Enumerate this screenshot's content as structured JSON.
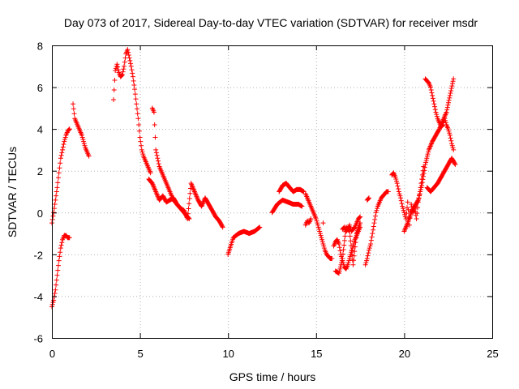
{
  "chart_data": {
    "type": "scatter",
    "title": "Day 073 of 2017, Sidereal Day-to-day VTEC variation (SDTVAR) for receiver msdr",
    "xlabel": "GPS time / hours",
    "ylabel": "SDTVAR / TECUs",
    "xlim": [
      0,
      25
    ],
    "ylim": [
      -6,
      8
    ],
    "xticks": [
      "0",
      "5",
      "10",
      "15",
      "20",
      "25"
    ],
    "yticks": [
      "-6",
      "-4",
      "-2",
      "0",
      "2",
      "4",
      "6",
      "8"
    ],
    "grid": true,
    "marker": "+",
    "marker_color": "#ff0000",
    "series": [
      {
        "name": "rise-0",
        "x": [
          0.0,
          0.1,
          0.2,
          0.3,
          0.4,
          0.5,
          0.6,
          0.7,
          0.8,
          0.9,
          1.0
        ],
        "y": [
          -0.5,
          0.0,
          0.6,
          1.2,
          1.9,
          2.6,
          3.0,
          3.4,
          3.7,
          3.9,
          4.0
        ]
      },
      {
        "name": "low-0",
        "x": [
          0.0,
          0.1,
          0.2,
          0.3,
          0.4,
          0.5,
          0.6,
          0.7,
          0.8,
          0.9,
          1.0
        ],
        "y": [
          -4.5,
          -4.2,
          -3.7,
          -3.0,
          -2.3,
          -1.7,
          -1.3,
          -1.1,
          -1.1,
          -1.2,
          -1.2
        ]
      },
      {
        "name": "seg-1",
        "x": [
          1.2,
          1.3,
          1.4,
          1.5,
          1.6,
          1.7,
          1.8,
          1.9,
          2.0,
          2.1
        ],
        "y": [
          5.2,
          4.5,
          4.3,
          4.1,
          3.9,
          3.7,
          3.4,
          3.1,
          2.9,
          2.7
        ]
      },
      {
        "name": "seg-2",
        "x": [
          3.5,
          3.6,
          3.7,
          3.8,
          3.9,
          4.0,
          4.1,
          4.2,
          4.3,
          4.4,
          4.5,
          4.6,
          4.7,
          4.8,
          4.9,
          5.0,
          5.1,
          5.2,
          5.3,
          5.4,
          5.5,
          5.6
        ],
        "y": [
          5.4,
          6.8,
          7.1,
          6.7,
          6.5,
          6.6,
          7.0,
          7.6,
          7.8,
          7.4,
          7.0,
          6.5,
          5.9,
          5.2,
          4.5,
          3.6,
          3.0,
          2.7,
          2.5,
          2.3,
          2.1,
          1.9
        ]
      },
      {
        "name": "seg-3",
        "x": [
          5.7,
          5.8,
          5.9,
          6.0,
          6.1,
          6.2,
          6.3,
          6.4,
          6.5,
          6.6,
          6.7,
          6.8,
          6.9,
          7.0,
          7.1,
          7.2,
          7.3,
          7.4,
          7.5,
          7.6,
          7.7,
          7.8
        ],
        "y": [
          5.0,
          4.8,
          3.0,
          2.6,
          2.2,
          2.0,
          1.8,
          1.6,
          1.4,
          1.2,
          1.0,
          0.8,
          0.6,
          0.5,
          0.4,
          0.3,
          0.2,
          0.1,
          0.0,
          -0.1,
          -0.2,
          -0.3
        ]
      },
      {
        "name": "seg-4",
        "x": [
          5.5,
          5.7,
          5.9,
          6.1,
          6.3,
          6.5,
          6.7,
          6.9,
          7.1,
          7.3,
          7.5,
          7.7,
          7.9,
          8.1,
          8.3,
          8.5,
          8.7,
          8.9,
          9.1,
          9.3,
          9.5,
          9.7
        ],
        "y": [
          1.6,
          1.4,
          1.0,
          0.6,
          0.8,
          0.5,
          0.6,
          0.7,
          0.4,
          0.2,
          0.1,
          -0.3,
          1.4,
          1.0,
          0.6,
          0.3,
          0.7,
          0.4,
          0.1,
          -0.2,
          -0.4,
          -0.7
        ]
      },
      {
        "name": "seg-5",
        "x": [
          10.0,
          10.3,
          10.6,
          10.9,
          11.2,
          11.5,
          11.8
        ],
        "y": [
          -2.0,
          -1.2,
          -1.0,
          -0.9,
          -1.0,
          -0.9,
          -0.7
        ]
      },
      {
        "name": "seg-6",
        "x": [
          12.5,
          12.8,
          13.1,
          13.4,
          13.7,
          14.0,
          14.2
        ],
        "y": [
          0.0,
          0.4,
          0.6,
          0.5,
          0.4,
          0.4,
          0.3
        ]
      },
      {
        "name": "seg-7",
        "x": [
          12.9,
          13.1,
          13.3,
          13.5,
          13.7,
          13.9,
          14.1,
          14.3
        ],
        "y": [
          1.0,
          1.3,
          1.4,
          1.2,
          1.0,
          1.1,
          1.1,
          1.0
        ]
      },
      {
        "name": "seg-8",
        "x": [
          14.4,
          14.5,
          14.6,
          14.7,
          14.8,
          14.9,
          15.0,
          15.1,
          15.2,
          15.3,
          15.4,
          15.5,
          15.6,
          15.7,
          15.8,
          15.9
        ],
        "y": [
          0.9,
          0.7,
          0.5,
          0.3,
          0.1,
          -0.1,
          -0.3,
          -0.6,
          -0.9,
          -1.2,
          -1.5,
          -1.8,
          -2.0,
          -2.1,
          -2.2,
          -2.2
        ]
      },
      {
        "name": "seg-9",
        "x": [
          14.4,
          14.5,
          14.6,
          14.7
        ],
        "y": [
          -0.6,
          -0.4,
          -0.5,
          -0.3
        ]
      },
      {
        "name": "seg-10",
        "x": [
          15.4
        ],
        "y": [
          -0.5
        ]
      },
      {
        "name": "seg-11",
        "x": [
          16.0,
          16.1,
          16.2,
          16.3,
          16.4,
          16.5,
          16.6,
          16.7,
          16.8,
          16.9,
          17.0,
          17.1,
          17.2,
          17.3,
          17.4,
          17.5
        ],
        "y": [
          -1.6,
          -1.4,
          -1.3,
          -1.5,
          -2.0,
          -2.3,
          -2.6,
          -2.7,
          -2.5,
          -2.2,
          -1.9,
          -1.6,
          -1.3,
          -1.1,
          -0.9,
          -0.7
        ]
      },
      {
        "name": "seg-12",
        "x": [
          16.1,
          16.3,
          16.5,
          16.7,
          16.9,
          17.1,
          17.3,
          17.5
        ],
        "y": [
          -2.8,
          -2.9,
          -2.2,
          -0.7,
          -0.9,
          -2.5,
          -1.0,
          -0.5
        ]
      },
      {
        "name": "seg-13",
        "x": [
          16.5,
          16.6,
          16.7,
          16.8,
          16.9,
          17.0,
          17.1,
          17.2,
          17.3,
          17.4,
          17.5
        ],
        "y": [
          -0.8,
          -0.7,
          -0.9,
          -0.8,
          -0.6,
          -0.9,
          -0.8,
          -0.7,
          -0.5,
          -0.3,
          -0.2
        ]
      },
      {
        "name": "seg-14",
        "x": [
          17.8,
          17.9,
          18.0,
          18.1,
          18.2,
          18.3,
          18.4,
          18.5,
          18.6,
          18.7,
          18.8,
          18.9,
          19.0,
          19.1
        ],
        "y": [
          -2.5,
          -2.2,
          -1.8,
          -1.5,
          -1.0,
          -0.5,
          0.0,
          0.3,
          0.5,
          0.7,
          0.8,
          0.9,
          1.0,
          1.0
        ]
      },
      {
        "name": "seg-15",
        "x": [
          17.9,
          18.0
        ],
        "y": [
          0.6,
          0.7
        ]
      },
      {
        "name": "seg-16",
        "x": [
          19.3,
          19.4,
          19.5,
          19.6,
          19.7,
          19.8,
          19.9,
          20.0,
          20.1,
          20.2,
          20.3,
          20.4,
          20.5,
          20.6,
          20.7,
          20.8,
          20.9,
          21.0,
          21.1
        ],
        "y": [
          1.8,
          1.9,
          1.7,
          1.4,
          1.0,
          0.7,
          0.3,
          0.0,
          -0.3,
          0.5,
          -0.6,
          0.4,
          0.0,
          0.2,
          -0.3,
          0.5,
          1.0,
          1.6,
          2.2
        ]
      },
      {
        "name": "seg-17",
        "x": [
          20.0,
          20.2,
          20.4,
          20.6,
          20.8,
          21.0,
          21.2,
          21.4,
          21.6,
          21.8,
          22.0,
          22.2,
          22.4,
          22.6,
          22.8
        ],
        "y": [
          -0.9,
          -0.5,
          0.0,
          0.3,
          0.6,
          1.3,
          2.3,
          3.0,
          3.4,
          3.7,
          4.0,
          4.4,
          4.8,
          5.6,
          6.4
        ]
      },
      {
        "name": "seg-18",
        "x": [
          21.2,
          21.3,
          21.4,
          21.5,
          21.6,
          21.7,
          21.8,
          21.9,
          22.0,
          22.1,
          22.2,
          22.3,
          22.4,
          22.5,
          22.6,
          22.7,
          22.8
        ],
        "y": [
          6.4,
          6.3,
          6.2,
          6.0,
          5.6,
          5.2,
          4.8,
          4.5,
          4.3,
          4.1,
          4.2,
          4.5,
          4.2,
          4.0,
          3.7,
          3.3,
          3.0
        ]
      },
      {
        "name": "seg-19",
        "x": [
          21.3,
          21.5,
          21.7,
          21.9,
          22.1,
          22.3,
          22.5,
          22.7,
          22.9
        ],
        "y": [
          1.2,
          1.0,
          1.2,
          1.4,
          1.7,
          2.0,
          2.3,
          2.6,
          2.3
        ]
      }
    ]
  }
}
